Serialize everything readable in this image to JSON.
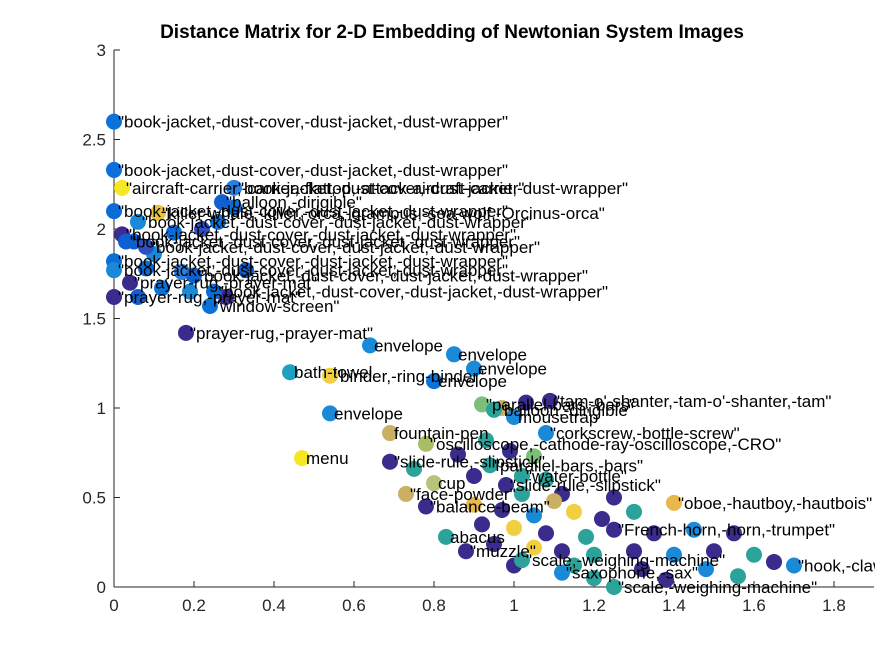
{
  "chart_data": {
    "type": "scatter",
    "title": "Distance Matrix for 2-D Embedding of Newtonian System Images",
    "xlabel": "",
    "ylabel": "",
    "xlim": [
      0,
      1.9
    ],
    "ylim": [
      0,
      3
    ],
    "xticks": [
      "0",
      "0.2",
      "0.4",
      "0.6",
      "0.8",
      "1",
      "1.2",
      "1.4",
      "1.6",
      "1.8"
    ],
    "yticks": [
      "0",
      "0.5",
      "1",
      "1.5",
      "2",
      "2.5",
      "3"
    ],
    "grid": false,
    "box": "left-bottom axes only",
    "marker_colormap": "parula",
    "points": [
      {
        "x": 0.0,
        "y": 2.6,
        "label": "\"book-jacket,-dust-cover,-dust-jacket,-dust-wrapper\"",
        "color": "#0a72d8"
      },
      {
        "x": 0.0,
        "y": 2.33,
        "label": "\"book-jacket,-dust-cover,-dust-jacket,-dust-wrapper\"",
        "color": "#0d6fdb"
      },
      {
        "x": 0.02,
        "y": 2.23,
        "label": "\"aircraft-carrier,-carrier,-flattop,-attack-aircraft-carrier\"",
        "color": "#f5e626"
      },
      {
        "x": 0.3,
        "y": 2.23,
        "label": "\"book-jacket,-dust-cover,-dust-jacket,-dust-wrapper\"",
        "color": "#2d7fe0"
      },
      {
        "x": 0.27,
        "y": 2.15,
        "label": "\"balloon,-dirigible\"",
        "color": "#1060d0"
      },
      {
        "x": 0.0,
        "y": 2.1,
        "label": "\"book-jacket,-dust-cover,-dust-jacket,-dust-wrapper\"",
        "color": "#0b6cd8"
      },
      {
        "x": 0.11,
        "y": 2.09,
        "label": "\"killer-whale,-killer,-orca,-grampus,-sea-wolf,-Orcinus-orca\"",
        "color": "#e8c43a"
      },
      {
        "x": 0.06,
        "y": 2.04,
        "label": "\"book-jacket,-dust-cover,-dust-jacket,-dust-wrapper\"",
        "color": "#1a8ad8"
      },
      {
        "x": 0.02,
        "y": 1.97,
        "label": "\"book-jacket,-dust-cover,-dust-jacket,-dust-wrapper\"",
        "color": "#3e2b90"
      },
      {
        "x": 0.03,
        "y": 1.93,
        "label": "\"book-jacket,-dust-cover,-dust-jacket,-dust-wrapper\"",
        "color": "#0f5fd0"
      },
      {
        "x": 0.08,
        "y": 1.9,
        "label": "\"book-jacket,-dust-cover,-dust-jacket,-dust-wrapper\"",
        "color": "#2f4fc0"
      },
      {
        "x": 0.0,
        "y": 1.82,
        "label": "\"book-jacket,-dust-cover,-dust-jacket,-dust-wrapper\"",
        "color": "#0b6fd8"
      },
      {
        "x": 0.0,
        "y": 1.77,
        "label": "\"book-jacket,-dust-cover,-dust-jacket,-dust-wrapper\"",
        "color": "#1a8ad8"
      },
      {
        "x": 0.2,
        "y": 1.74,
        "label": "\"book-jacket,-dust-cover,-dust-jacket,-dust-wrapper\"",
        "color": "#0f5fd0"
      },
      {
        "x": 0.04,
        "y": 1.7,
        "label": "\"prayer-rug,-prayer-mat\"",
        "color": "#3a2c8c"
      },
      {
        "x": 0.0,
        "y": 1.62,
        "label": "\"prayer-rug,-prayer-mat\"",
        "color": "#3a2c8c"
      },
      {
        "x": 0.25,
        "y": 1.65,
        "label": "\"book-jacket,-dust-cover,-dust-jacket,-dust-wrapper\"",
        "color": "#0b6cd8"
      },
      {
        "x": 0.24,
        "y": 1.57,
        "label": "\"window-screen\"",
        "color": "#0a72d8"
      },
      {
        "x": 0.18,
        "y": 1.42,
        "label": "\"prayer-rug,-prayer-mat\"",
        "color": "#3a2c8c"
      },
      {
        "x": 0.64,
        "y": 1.35,
        "label": "envelope",
        "color": "#1a8ad8"
      },
      {
        "x": 0.85,
        "y": 1.3,
        "label": "envelope",
        "color": "#1a8ad8"
      },
      {
        "x": 0.9,
        "y": 1.22,
        "label": "envelope",
        "color": "#1a8ad8"
      },
      {
        "x": 0.44,
        "y": 1.2,
        "label": "bath-towel",
        "color": "#1fa0c0"
      },
      {
        "x": 0.54,
        "y": 1.18,
        "label": "\"binder,-ring-binder\"",
        "color": "#f0d040"
      },
      {
        "x": 0.8,
        "y": 1.15,
        "label": "envelope",
        "color": "#0a72d8"
      },
      {
        "x": 0.92,
        "y": 1.02,
        "label": "\"parallel-bars,-bars\"",
        "color": "#7cbf7a"
      },
      {
        "x": 1.09,
        "y": 1.04,
        "label": "\"tam-o'-shanter,-tam-o'-shanter,-tam\"",
        "color": "#3a2c8c"
      },
      {
        "x": 0.95,
        "y": 0.99,
        "label": "\"balloon,-dirigible\"",
        "color": "#2ba39a"
      },
      {
        "x": 1.0,
        "y": 0.95,
        "label": "mousetrap",
        "color": "#1a8ad8"
      },
      {
        "x": 0.54,
        "y": 0.97,
        "label": "envelope",
        "color": "#1a8ad8"
      },
      {
        "x": 1.08,
        "y": 0.86,
        "label": "\"corkscrew,-bottle-screw\"",
        "color": "#1a8ad8"
      },
      {
        "x": 0.69,
        "y": 0.86,
        "label": "fountain-pen",
        "color": "#c9b062"
      },
      {
        "x": 0.78,
        "y": 0.8,
        "label": "\"oscilloscope,-cathode-ray-oscilloscope,-CRO\"",
        "color": "#a8bd66"
      },
      {
        "x": 0.47,
        "y": 0.72,
        "label": "menu",
        "color": "#f5e626"
      },
      {
        "x": 0.69,
        "y": 0.7,
        "label": "\"slide-rule,-slipstick\"",
        "color": "#3a2c8c"
      },
      {
        "x": 0.94,
        "y": 0.68,
        "label": "\"parallel-bars,-bars\"",
        "color": "#2ba39a"
      },
      {
        "x": 1.02,
        "y": 0.62,
        "label": "\"water-bottle\"",
        "color": "#2ba39a"
      },
      {
        "x": 0.8,
        "y": 0.58,
        "label": "cup",
        "color": "#b8c27a"
      },
      {
        "x": 0.98,
        "y": 0.57,
        "label": "\"slide-rule,-slipstick\"",
        "color": "#3a2c8c"
      },
      {
        "x": 0.73,
        "y": 0.52,
        "label": "\"face-powder\"",
        "color": "#c9b062"
      },
      {
        "x": 0.78,
        "y": 0.45,
        "label": "\"balance-beam\"",
        "color": "#3a2c8c"
      },
      {
        "x": 1.4,
        "y": 0.47,
        "label": "\"oboe,-hautboy,-hautbois\"",
        "color": "#e8b84a"
      },
      {
        "x": 0.83,
        "y": 0.28,
        "label": "abacus",
        "color": "#2ba39a"
      },
      {
        "x": 1.25,
        "y": 0.32,
        "label": "\"French-horn,-horn,-trumpet\"",
        "color": "#3a2c8c"
      },
      {
        "x": 0.88,
        "y": 0.2,
        "label": "\"muzzle\"",
        "color": "#3a2c8c"
      },
      {
        "x": 1.02,
        "y": 0.15,
        "label": "\"scale,-weighing-machine\"",
        "color": "#2ba39a"
      },
      {
        "x": 1.12,
        "y": 0.08,
        "label": "\"saxophone,-sax\"",
        "color": "#1a8ad8"
      },
      {
        "x": 1.25,
        "y": 0.0,
        "label": "\"scale,-weighing-machine\"",
        "color": "#2ba39a"
      },
      {
        "x": 1.7,
        "y": 0.12,
        "label": "\"hook,-claw\"",
        "color": "#1a8ad8"
      }
    ],
    "background_points": [
      {
        "x": 0.05,
        "y": 1.93,
        "color": "#0f5fd0"
      },
      {
        "x": 0.1,
        "y": 1.86,
        "color": "#1a8ad8"
      },
      {
        "x": 0.15,
        "y": 1.98,
        "color": "#0b6cd8"
      },
      {
        "x": 0.22,
        "y": 2.0,
        "color": "#2f4fc0"
      },
      {
        "x": 0.3,
        "y": 2.12,
        "color": "#0b6cd8"
      },
      {
        "x": 0.12,
        "y": 1.67,
        "color": "#0a72d8"
      },
      {
        "x": 0.19,
        "y": 1.65,
        "color": "#1a8ad8"
      },
      {
        "x": 0.06,
        "y": 1.62,
        "color": "#0f5fd0"
      },
      {
        "x": 0.28,
        "y": 1.62,
        "color": "#3a2c8c"
      },
      {
        "x": 0.08,
        "y": 1.78,
        "color": "#0b6cd8"
      },
      {
        "x": 0.17,
        "y": 1.76,
        "color": "#2d7fe0"
      },
      {
        "x": 0.33,
        "y": 1.77,
        "color": "#0f5fd0"
      },
      {
        "x": 0.26,
        "y": 2.04,
        "color": "#0a72d8"
      },
      {
        "x": 0.97,
        "y": 1.0,
        "color": "#c9b062"
      },
      {
        "x": 1.03,
        "y": 1.03,
        "color": "#3a2c8c"
      },
      {
        "x": 0.93,
        "y": 0.82,
        "color": "#2ba39a"
      },
      {
        "x": 0.99,
        "y": 0.76,
        "color": "#3a2c8c"
      },
      {
        "x": 1.05,
        "y": 0.73,
        "color": "#7cbf7a"
      },
      {
        "x": 0.9,
        "y": 0.62,
        "color": "#3a2c8c"
      },
      {
        "x": 1.08,
        "y": 0.6,
        "color": "#2ba39a"
      },
      {
        "x": 1.12,
        "y": 0.52,
        "color": "#3a2c8c"
      },
      {
        "x": 0.9,
        "y": 0.46,
        "color": "#e8b84a"
      },
      {
        "x": 0.97,
        "y": 0.43,
        "color": "#3a2c8c"
      },
      {
        "x": 1.05,
        "y": 0.4,
        "color": "#1a8ad8"
      },
      {
        "x": 1.15,
        "y": 0.42,
        "color": "#f0d040"
      },
      {
        "x": 1.22,
        "y": 0.38,
        "color": "#3a2c8c"
      },
      {
        "x": 1.3,
        "y": 0.42,
        "color": "#2ba39a"
      },
      {
        "x": 0.92,
        "y": 0.35,
        "color": "#3a2c8c"
      },
      {
        "x": 1.0,
        "y": 0.33,
        "color": "#f0d040"
      },
      {
        "x": 1.08,
        "y": 0.3,
        "color": "#3a2c8c"
      },
      {
        "x": 1.18,
        "y": 0.28,
        "color": "#2ba39a"
      },
      {
        "x": 1.35,
        "y": 0.3,
        "color": "#3a2c8c"
      },
      {
        "x": 1.45,
        "y": 0.32,
        "color": "#1a8ad8"
      },
      {
        "x": 1.55,
        "y": 0.3,
        "color": "#3a2c8c"
      },
      {
        "x": 0.95,
        "y": 0.24,
        "color": "#3a2c8c"
      },
      {
        "x": 1.05,
        "y": 0.22,
        "color": "#f0d040"
      },
      {
        "x": 1.12,
        "y": 0.2,
        "color": "#3a2c8c"
      },
      {
        "x": 1.2,
        "y": 0.18,
        "color": "#2ba39a"
      },
      {
        "x": 1.3,
        "y": 0.2,
        "color": "#3a2c8c"
      },
      {
        "x": 1.4,
        "y": 0.18,
        "color": "#1a8ad8"
      },
      {
        "x": 1.5,
        "y": 0.2,
        "color": "#3a2c8c"
      },
      {
        "x": 1.6,
        "y": 0.18,
        "color": "#2ba39a"
      },
      {
        "x": 1.0,
        "y": 0.12,
        "color": "#3a2c8c"
      },
      {
        "x": 1.15,
        "y": 0.12,
        "color": "#2ba39a"
      },
      {
        "x": 1.32,
        "y": 0.1,
        "color": "#3a2c8c"
      },
      {
        "x": 1.48,
        "y": 0.1,
        "color": "#1a8ad8"
      },
      {
        "x": 1.2,
        "y": 0.05,
        "color": "#2ba39a"
      },
      {
        "x": 1.38,
        "y": 0.04,
        "color": "#3a2c8c"
      },
      {
        "x": 1.56,
        "y": 0.06,
        "color": "#2ba39a"
      },
      {
        "x": 1.65,
        "y": 0.14,
        "color": "#3a2c8c"
      },
      {
        "x": 1.1,
        "y": 0.48,
        "color": "#c9b062"
      },
      {
        "x": 1.25,
        "y": 0.5,
        "color": "#3a2c8c"
      },
      {
        "x": 1.02,
        "y": 0.52,
        "color": "#2ba39a"
      },
      {
        "x": 0.86,
        "y": 0.74,
        "color": "#3a2c8c"
      },
      {
        "x": 0.75,
        "y": 0.66,
        "color": "#2ba39a"
      }
    ]
  }
}
